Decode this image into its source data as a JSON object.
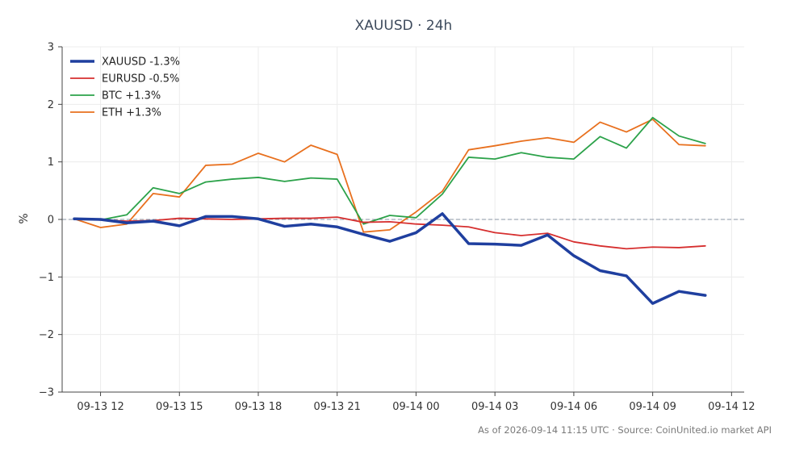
{
  "chart_data": {
    "type": "line",
    "title": "XAUUSD · 24h",
    "xlabel": "",
    "ylabel": "%",
    "ylim": [
      -3,
      3
    ],
    "xlim": [
      10.54,
      36.48
    ],
    "yticks": [
      -3,
      -2,
      -1,
      0,
      1,
      2,
      3
    ],
    "ytick_labels": [
      "−3",
      "−2",
      "−1",
      "0",
      "1",
      "2",
      "3"
    ],
    "xticks": [
      12,
      15,
      18,
      21,
      24,
      27,
      30,
      33,
      36
    ],
    "xtick_labels": [
      "09-13 12",
      "09-13 15",
      "09-13 18",
      "09-13 21",
      "09-14 00",
      "09-14 03",
      "09-14 06",
      "09-14 09",
      "09-14 12"
    ],
    "x": [
      11,
      12,
      13,
      14,
      15,
      16,
      17,
      18,
      19,
      20,
      21,
      22,
      23,
      24,
      25,
      26,
      27,
      28,
      29,
      30,
      31,
      32,
      33,
      34,
      35
    ],
    "grid": true,
    "zero_line": true,
    "legend_position": "top-left",
    "series": [
      {
        "name": "XAUUSD -1.3%",
        "color": "#1f3f9f",
        "width": 3.5,
        "values": [
          0.01,
          0.0,
          -0.06,
          -0.03,
          -0.11,
          0.05,
          0.05,
          0.01,
          -0.12,
          -0.08,
          -0.13,
          -0.26,
          -0.38,
          -0.23,
          0.1,
          -0.42,
          -0.43,
          -0.45,
          -0.27,
          -0.63,
          -0.89,
          -0.98,
          -1.46,
          -1.25,
          -1.32
        ]
      },
      {
        "name": "EURUSD -0.5%",
        "color": "#d62f2f",
        "width": 1.8,
        "values": [
          0.01,
          -0.01,
          -0.03,
          -0.02,
          0.02,
          0.01,
          0.0,
          0.01,
          0.02,
          0.02,
          0.04,
          -0.05,
          -0.04,
          -0.08,
          -0.1,
          -0.13,
          -0.23,
          -0.28,
          -0.24,
          -0.39,
          -0.46,
          -0.51,
          -0.48,
          -0.49,
          -0.46
        ]
      },
      {
        "name": "BTC +1.3%",
        "color": "#2ca24a",
        "width": 1.8,
        "values": [
          0.02,
          -0.01,
          0.08,
          0.55,
          0.45,
          0.65,
          0.7,
          0.73,
          0.66,
          0.72,
          0.7,
          -0.08,
          0.07,
          0.03,
          0.44,
          1.08,
          1.05,
          1.16,
          1.08,
          1.05,
          1.44,
          1.24,
          1.77,
          1.45,
          1.32
        ]
      },
      {
        "name": "ETH +1.3%",
        "color": "#e8701e",
        "width": 1.8,
        "values": [
          0.01,
          -0.14,
          -0.08,
          0.45,
          0.39,
          0.94,
          0.96,
          1.15,
          1.0,
          1.29,
          1.13,
          -0.22,
          -0.18,
          0.13,
          0.49,
          1.21,
          1.28,
          1.36,
          1.42,
          1.34,
          1.69,
          1.52,
          1.74,
          1.3,
          1.28
        ]
      }
    ]
  },
  "footer": "As of 2026-09-14 11:15 UTC · Source: CoinUnited.io market API"
}
